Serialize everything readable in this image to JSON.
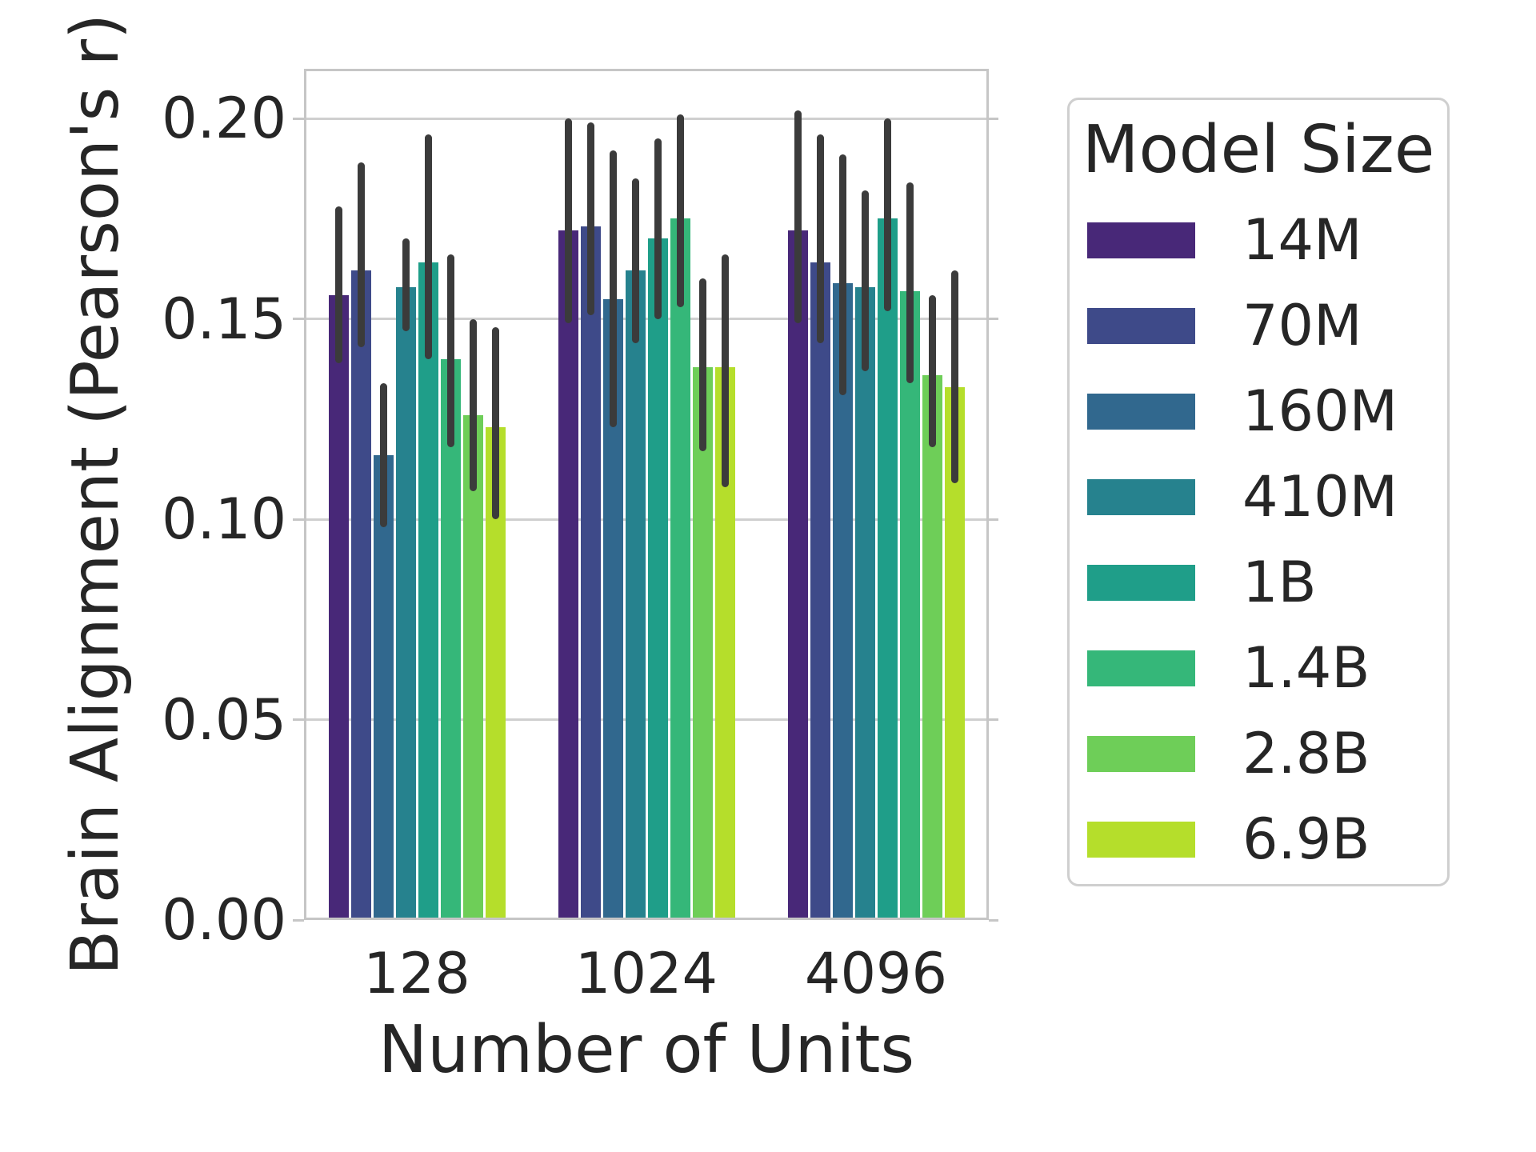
{
  "figure": {
    "background": "#ffffff",
    "text_color": "#262626",
    "grid_color": "#cfcfcf",
    "spine_color": "#c6c6c6",
    "errorbar_color": "#3b3b3b"
  },
  "chart_data": {
    "type": "bar",
    "title": "",
    "xlabel": "Number of Units",
    "ylabel": "Brain Alignment (Pearson's r)",
    "categories": [
      "128",
      "1024",
      "4096"
    ],
    "ytick_labels": [
      "0.00",
      "0.05",
      "0.10",
      "0.15",
      "0.20"
    ],
    "yticks": [
      0.0,
      0.05,
      0.1,
      0.15,
      0.2
    ],
    "ylim": [
      0,
      0.2124
    ],
    "grid": "horizontal",
    "legend_title": "Model Size",
    "legend_position": "right",
    "error_bars": "95% CI",
    "series": [
      {
        "name": "14M",
        "color": "#482878",
        "values": [
          0.156,
          0.172,
          0.172
        ],
        "ci_low": [
          0.139,
          0.149,
          0.149
        ],
        "ci_high": [
          0.178,
          0.2,
          0.202
        ]
      },
      {
        "name": "70M",
        "color": "#3e4a89",
        "values": [
          0.162,
          0.173,
          0.164
        ],
        "ci_low": [
          0.143,
          0.151,
          0.144
        ],
        "ci_high": [
          0.189,
          0.199,
          0.196
        ]
      },
      {
        "name": "160M",
        "color": "#31688e",
        "values": [
          0.116,
          0.155,
          0.159
        ],
        "ci_low": [
          0.098,
          0.123,
          0.131
        ],
        "ci_high": [
          0.134,
          0.192,
          0.191
        ]
      },
      {
        "name": "410M",
        "color": "#26828e",
        "values": [
          0.158,
          0.162,
          0.158
        ],
        "ci_low": [
          0.147,
          0.144,
          0.137
        ],
        "ci_high": [
          0.17,
          0.185,
          0.182
        ]
      },
      {
        "name": "1B",
        "color": "#1f9e89",
        "values": [
          0.164,
          0.17,
          0.175
        ],
        "ci_low": [
          0.14,
          0.15,
          0.152
        ],
        "ci_high": [
          0.196,
          0.195,
          0.2
        ]
      },
      {
        "name": "1.4B",
        "color": "#35b779",
        "values": [
          0.14,
          0.175,
          0.157
        ],
        "ci_low": [
          0.118,
          0.153,
          0.134
        ],
        "ci_high": [
          0.166,
          0.201,
          0.184
        ]
      },
      {
        "name": "2.8B",
        "color": "#6ece58",
        "values": [
          0.126,
          0.138,
          0.136
        ],
        "ci_low": [
          0.107,
          0.117,
          0.118
        ],
        "ci_high": [
          0.15,
          0.16,
          0.156
        ]
      },
      {
        "name": "6.9B",
        "color": "#b5de2b",
        "values": [
          0.123,
          0.138,
          0.133
        ],
        "ci_low": [
          0.1,
          0.108,
          0.109
        ],
        "ci_high": [
          0.148,
          0.166,
          0.162
        ]
      }
    ]
  }
}
